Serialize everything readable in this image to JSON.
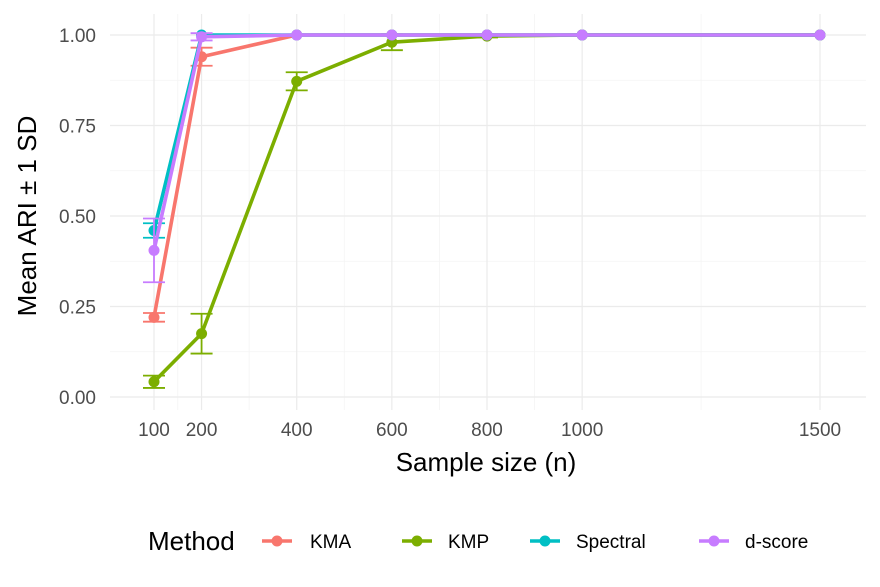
{
  "chart_data": {
    "type": "line",
    "title": "",
    "xlabel": "Sample size (n)",
    "ylabel": "Mean ARI ± 1 SD",
    "x": [
      100,
      200,
      400,
      600,
      800,
      1000,
      1500
    ],
    "xticks": [
      "100",
      "200",
      "400",
      "600",
      "800",
      "1000",
      "1500"
    ],
    "xlim": [
      100,
      1500
    ],
    "ylim": [
      0,
      1
    ],
    "yticks": [
      "0.00",
      "0.25",
      "0.50",
      "0.75",
      "1.00"
    ],
    "grid": true,
    "legend": {
      "title": "Method",
      "position": "bottom"
    },
    "series": [
      {
        "name": "KMA",
        "color": "#F8766D",
        "values": [
          0.22,
          0.94,
          1.0,
          1.0,
          1.0,
          1.0,
          1.0
        ],
        "sd": [
          0.012,
          0.025,
          0.0,
          0.0,
          0.0,
          0.0,
          0.0
        ]
      },
      {
        "name": "KMP",
        "color": "#7CAE00",
        "values": [
          0.042,
          0.175,
          0.872,
          0.98,
          0.997,
          1.0,
          1.0
        ],
        "sd": [
          0.017,
          0.055,
          0.025,
          0.022,
          0.004,
          0.0,
          0.0
        ]
      },
      {
        "name": "Spectral",
        "color": "#00BFC4",
        "values": [
          0.46,
          1.0,
          1.0,
          1.0,
          1.0,
          1.0,
          1.0
        ],
        "sd": [
          0.02,
          0.0,
          0.0,
          0.0,
          0.0,
          0.0,
          0.0
        ]
      },
      {
        "name": "d-score",
        "color": "#C77CFF",
        "values": [
          0.405,
          0.995,
          1.0,
          1.0,
          1.0,
          1.0,
          1.0
        ],
        "sd": [
          0.088,
          0.01,
          0.0,
          0.0,
          0.0,
          0.0,
          0.0
        ]
      }
    ]
  }
}
